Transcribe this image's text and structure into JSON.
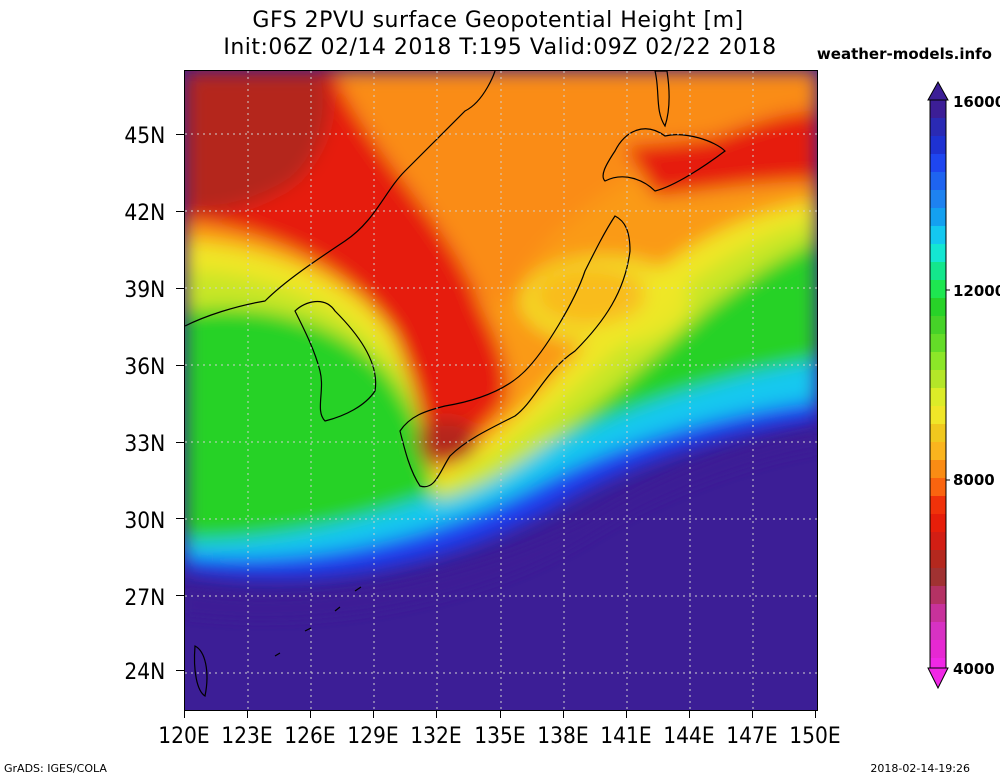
{
  "title": {
    "line1": "GFS 2PVU surface Geopotential Height [m]",
    "line2": "Init:06Z 02/14 2018 T:195 Valid:09Z 02/22 2018"
  },
  "site_label": "weather-models.info",
  "axes": {
    "y_labels": [
      "45N",
      "42N",
      "39N",
      "36N",
      "33N",
      "30N",
      "27N",
      "24N"
    ],
    "x_labels": [
      "120E",
      "123E",
      "126E",
      "129E",
      "132E",
      "135E",
      "138E",
      "141E",
      "144E",
      "147E",
      "150E"
    ],
    "lat_range": [
      22.5,
      47.5
    ],
    "lon_range": [
      120,
      150
    ],
    "grid": true,
    "grid_style": "dotted"
  },
  "colorbar": {
    "labels": [
      "16000",
      "12000",
      "8000",
      "4000"
    ],
    "range": [
      4000,
      16000
    ]
  },
  "footer": {
    "left": "GrADS: IGES/COLA",
    "right": "2018-02-14-19:26"
  },
  "colors": {
    "purple_high": "#3c1e96",
    "blue": "#1e3cf0",
    "cyan": "#14d2f0",
    "green": "#28d228",
    "yellow": "#f0e628",
    "orange": "#fa8c14",
    "red": "#e61e0a",
    "dark_red": "#b4281e",
    "magenta_low": "#e628d2"
  }
}
